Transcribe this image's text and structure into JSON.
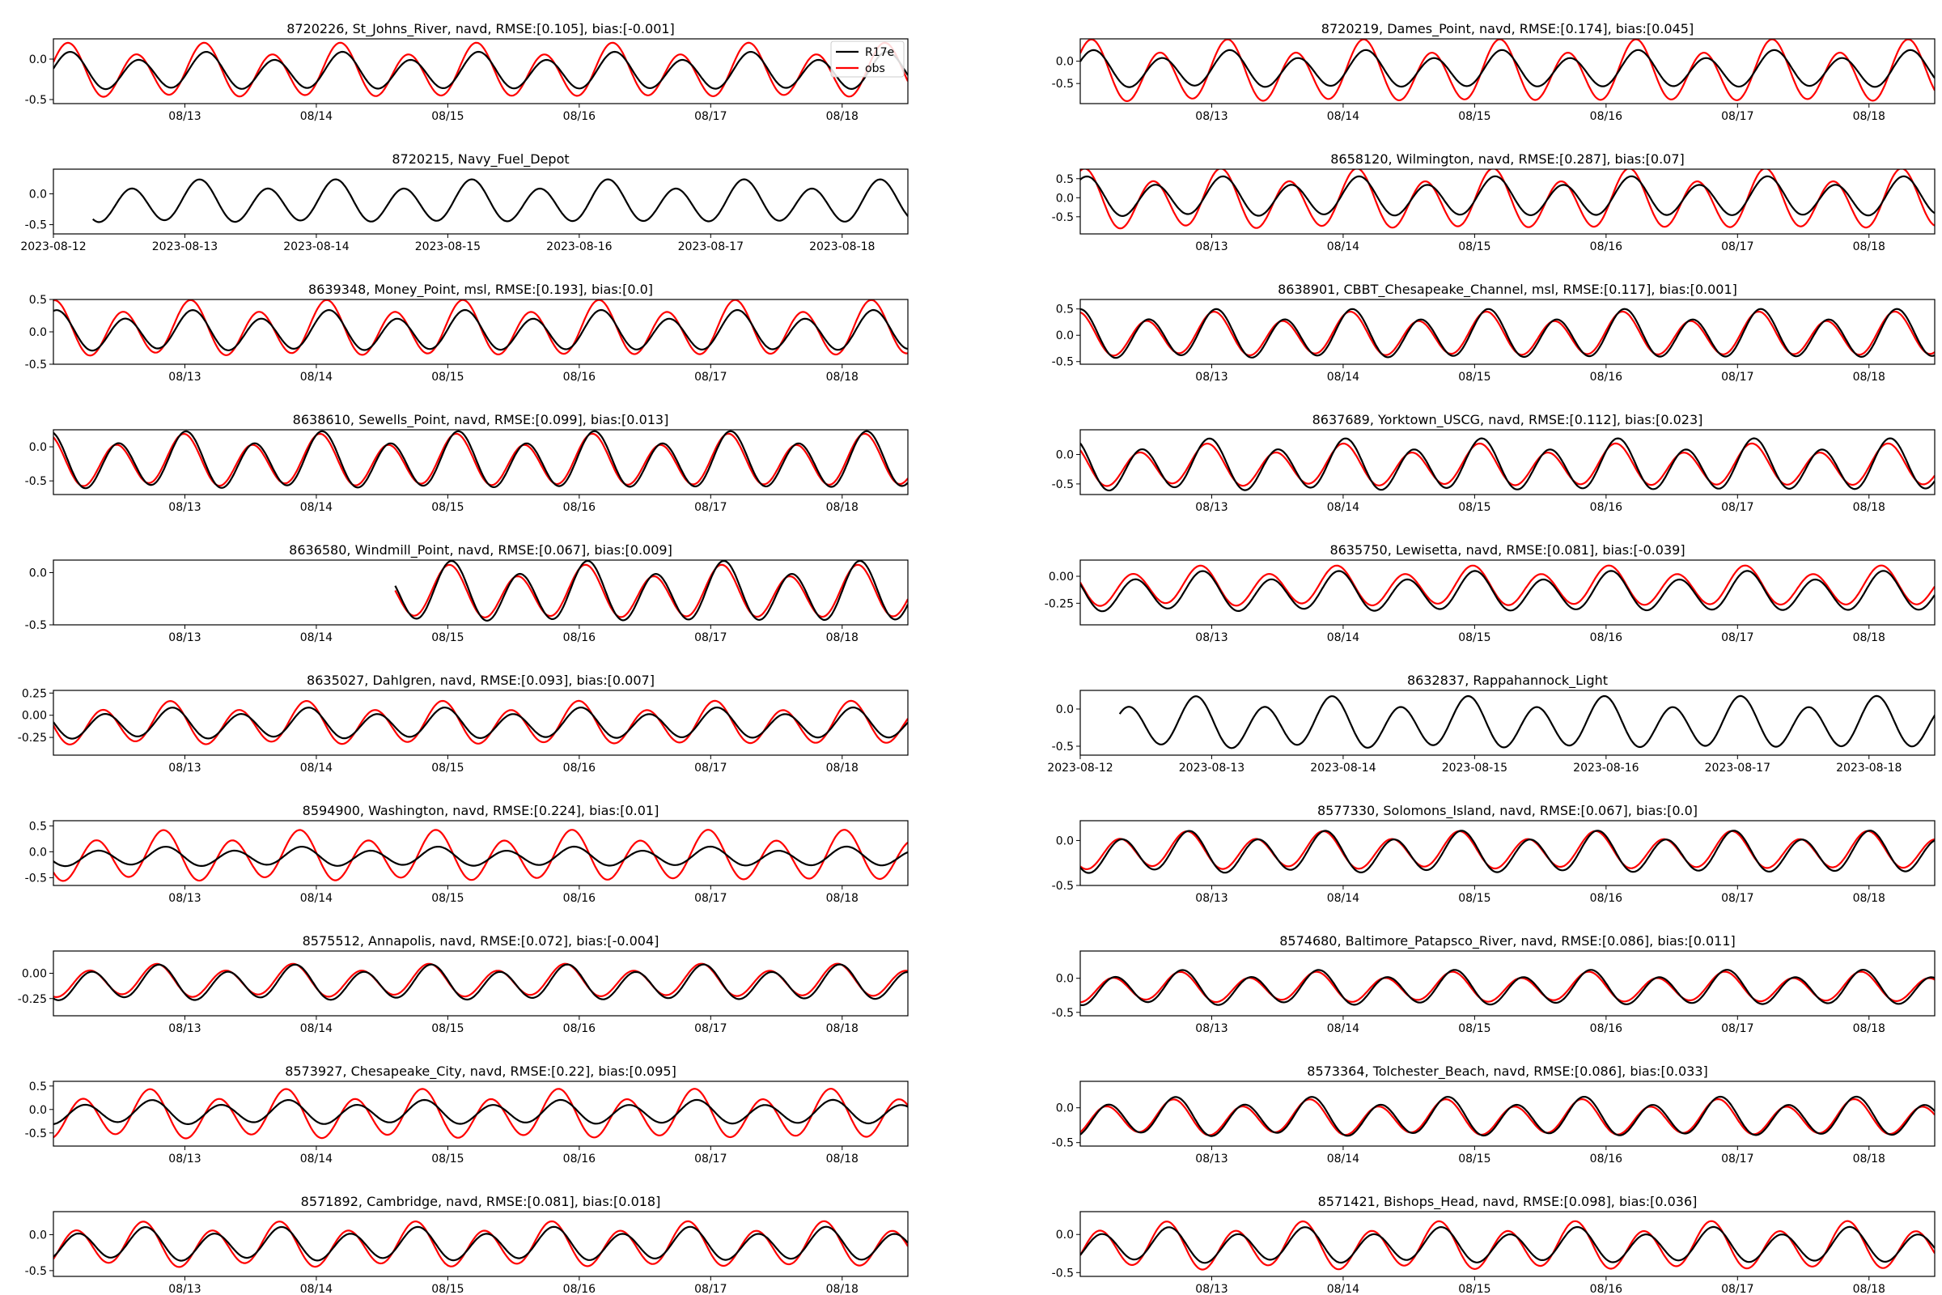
{
  "figure": {
    "colors": {
      "model": "#000000",
      "obs": "#ff0000"
    },
    "legend": {
      "placement": "top-right",
      "entries": [
        "R17e",
        "obs"
      ]
    }
  },
  "chart_data": [
    {
      "type": "line",
      "title": "8720226, St_Johns_River, navd, RMSE:[0.105], bias:[-0.001]",
      "ylim": [
        -0.55,
        0.25
      ],
      "yticks": [
        "0.0",
        "-0.5"
      ],
      "ytick_values": [
        0.0,
        -0.5
      ],
      "x_tick_labels": [
        "08/13",
        "08/14",
        "08/15",
        "08/16",
        "08/17",
        "08/18"
      ],
      "model": {
        "name": "R17e",
        "start_day": 0.0,
        "end_day": 6.5,
        "mean": -0.16,
        "amp": 0.2
      },
      "obs": {
        "name": "obs",
        "start_day": 0.0,
        "end_day": 6.5,
        "mean": -0.16,
        "amp": 0.29
      }
    },
    {
      "type": "line",
      "title": "8720219, Dames_Point, navd, RMSE:[0.174], bias:[0.045]",
      "ylim": [
        -0.95,
        0.5
      ],
      "yticks": [
        "0.0",
        "-0.5"
      ],
      "ytick_values": [
        0.0,
        -0.5
      ],
      "x_tick_labels": [
        "08/13",
        "08/14",
        "08/15",
        "08/16",
        "08/17",
        "08/18"
      ],
      "model": {
        "name": "R17e",
        "start_day": 0.0,
        "end_day": 6.5,
        "mean": -0.2,
        "amp": 0.36
      },
      "obs": {
        "name": "obs",
        "start_day": 0.0,
        "end_day": 6.5,
        "mean": -0.26,
        "amp": 0.6
      }
    },
    {
      "type": "line",
      "title": "8720215, Navy_Fuel_Depot",
      "ylim": [
        -0.65,
        0.4
      ],
      "yticks": [
        "0.0",
        "-0.5"
      ],
      "ytick_values": [
        0.0,
        -0.5
      ],
      "x_tick_labels": [
        "2023-08-12",
        "2023-08-13",
        "2023-08-14",
        "2023-08-15",
        "2023-08-16",
        "2023-08-17",
        "2023-08-18"
      ],
      "model": {
        "name": "R17e",
        "start_day": 0.3,
        "end_day": 6.6,
        "mean": -0.14,
        "amp": 0.3
      }
    },
    {
      "type": "line",
      "title": "8658120, Wilmington, navd, RMSE:[0.287], bias:[0.07]",
      "ylim": [
        -0.95,
        0.75
      ],
      "yticks": [
        "0.5",
        "0.0",
        "-0.5"
      ],
      "ytick_values": [
        0.5,
        0.0,
        -0.5
      ],
      "x_tick_labels": [
        "08/13",
        "08/14",
        "08/15",
        "08/16",
        "08/17",
        "08/18"
      ],
      "model": {
        "name": "R17e",
        "start_day": 0.0,
        "end_day": 6.5,
        "mean": 0.0,
        "amp": 0.45
      },
      "obs": {
        "name": "obs",
        "start_day": 0.0,
        "end_day": 6.5,
        "mean": -0.08,
        "amp": 0.68
      }
    },
    {
      "type": "line",
      "title": "8639348, Money_Point, msl, RMSE:[0.193], bias:[0.0]",
      "ylim": [
        -0.5,
        0.5
      ],
      "yticks": [
        "0.5",
        "0.0",
        "-0.5"
      ],
      "ytick_values": [
        0.5,
        0.0,
        -0.5
      ],
      "x_tick_labels": [
        "08/13",
        "08/14",
        "08/15",
        "08/16",
        "08/17",
        "08/18"
      ],
      "model": {
        "name": "R17e",
        "start_day": 0.0,
        "end_day": 6.5,
        "mean": 0.0,
        "amp": 0.27
      },
      "obs": {
        "name": "obs",
        "start_day": 0.0,
        "end_day": 6.5,
        "mean": 0.03,
        "amp": 0.37
      }
    },
    {
      "type": "line",
      "title": "8638901, CBBT_Chesapeake_Channel, msl, RMSE:[0.117], bias:[0.001]",
      "ylim": [
        -0.55,
        0.68
      ],
      "yticks": [
        "0.5",
        "0.0",
        "-0.5"
      ],
      "ytick_values": [
        0.5,
        0.0,
        -0.5
      ],
      "x_tick_labels": [
        "08/13",
        "08/14",
        "08/15",
        "08/16",
        "08/17",
        "08/18"
      ],
      "model": {
        "name": "R17e",
        "start_day": 0.0,
        "end_day": 6.5,
        "mean": 0.0,
        "amp": 0.4
      },
      "obs": {
        "name": "obs",
        "start_day": 0.0,
        "end_day": 6.5,
        "mean": 0.0,
        "amp": 0.36
      }
    },
    {
      "type": "line",
      "title": "8638610, Sewells_Point, navd, RMSE:[0.099], bias:[0.013]",
      "ylim": [
        -0.7,
        0.25
      ],
      "yticks": [
        "0.0",
        "-0.5"
      ],
      "ytick_values": [
        0.0,
        -0.5
      ],
      "x_tick_labels": [
        "08/13",
        "08/14",
        "08/15",
        "08/16",
        "08/17",
        "08/18"
      ],
      "model": {
        "name": "R17e",
        "start_day": 0.0,
        "end_day": 6.5,
        "mean": -0.22,
        "amp": 0.36
      },
      "obs": {
        "name": "obs",
        "start_day": 0.0,
        "end_day": 6.5,
        "mean": -0.22,
        "amp": 0.33
      }
    },
    {
      "type": "line",
      "title": "8637689, Yorktown_USCG, navd, RMSE:[0.112], bias:[0.023]",
      "ylim": [
        -0.68,
        0.42
      ],
      "yticks": [
        "0.0",
        "-0.5"
      ],
      "ytick_values": [
        0.0,
        -0.5
      ],
      "x_tick_labels": [
        "08/13",
        "08/14",
        "08/15",
        "08/16",
        "08/17",
        "08/18"
      ],
      "model": {
        "name": "R17e",
        "start_day": 0.0,
        "end_day": 6.5,
        "mean": -0.2,
        "amp": 0.38
      },
      "obs": {
        "name": "obs",
        "start_day": 0.0,
        "end_day": 6.5,
        "mean": -0.2,
        "amp": 0.31
      }
    },
    {
      "type": "line",
      "title": "8636580, Windmill_Point, navd, RMSE:[0.067], bias:[0.009]",
      "ylim": [
        -0.5,
        0.12
      ],
      "yticks": [
        "0.0",
        "-0.5"
      ],
      "ytick_values": [
        0.0,
        -0.5
      ],
      "x_tick_labels": [
        "08/13",
        "08/14",
        "08/15",
        "08/16",
        "08/17",
        "08/18"
      ],
      "model": {
        "name": "R17e",
        "start_day": 2.6,
        "end_day": 6.5,
        "mean": -0.2,
        "amp": 0.25
      },
      "obs": {
        "name": "obs",
        "start_day": 2.6,
        "end_day": 6.5,
        "mean": -0.2,
        "amp": 0.22
      }
    },
    {
      "type": "line",
      "title": "8635750, Lewisetta, navd, RMSE:[0.081], bias:[-0.039]",
      "ylim": [
        -0.45,
        0.15
      ],
      "yticks": [
        "0.00",
        "-0.25"
      ],
      "ytick_values": [
        0.0,
        -0.25
      ],
      "x_tick_labels": [
        "08/13",
        "08/14",
        "08/15",
        "08/16",
        "08/17",
        "08/18"
      ],
      "model": {
        "name": "R17e",
        "start_day": 0.0,
        "end_day": 6.5,
        "mean": -0.15,
        "amp": 0.16
      },
      "obs": {
        "name": "obs",
        "start_day": 0.0,
        "end_day": 6.5,
        "mean": -0.1,
        "amp": 0.16
      }
    },
    {
      "type": "line",
      "title": "8635027, Dahlgren, navd, RMSE:[0.093], bias:[0.007]",
      "ylim": [
        -0.45,
        0.28
      ],
      "yticks": [
        "0.25",
        "0.00",
        "-0.25"
      ],
      "ytick_values": [
        0.25,
        0.0,
        -0.25
      ],
      "x_tick_labels": [
        "08/13",
        "08/14",
        "08/15",
        "08/16",
        "08/17",
        "08/18"
      ],
      "model": {
        "name": "R17e",
        "start_day": 0.0,
        "end_day": 6.5,
        "mean": -0.1,
        "amp": 0.15
      },
      "obs": {
        "name": "obs",
        "start_day": 0.0,
        "end_day": 6.5,
        "mean": -0.1,
        "amp": 0.21
      }
    },
    {
      "type": "line",
      "title": "8632837, Rappahannock_Light",
      "ylim": [
        -0.62,
        0.25
      ],
      "yticks": [
        "0.0",
        "-0.5"
      ],
      "ytick_values": [
        0.0,
        -0.5
      ],
      "x_tick_labels": [
        "2023-08-12",
        "2023-08-13",
        "2023-08-14",
        "2023-08-15",
        "2023-08-16",
        "2023-08-17",
        "2023-08-18"
      ],
      "model": {
        "name": "R17e",
        "start_day": 0.3,
        "end_day": 6.6,
        "mean": -0.2,
        "amp": 0.3
      }
    },
    {
      "type": "line",
      "title": "8594900, Washington, navd, RMSE:[0.224], bias:[0.01]",
      "ylim": [
        -0.65,
        0.6
      ],
      "yticks": [
        "0.5",
        "0.0",
        "-0.5"
      ],
      "ytick_values": [
        0.5,
        0.0,
        -0.5
      ],
      "x_tick_labels": [
        "08/13",
        "08/14",
        "08/15",
        "08/16",
        "08/17",
        "08/18"
      ],
      "model": {
        "name": "R17e",
        "start_day": 0.0,
        "end_day": 6.5,
        "mean": -0.1,
        "amp": 0.16
      },
      "obs": {
        "name": "obs",
        "start_day": 0.0,
        "end_day": 6.5,
        "mean": -0.1,
        "amp": 0.42
      }
    },
    {
      "type": "line",
      "title": "8577330, Solomons_Island, navd, RMSE:[0.067], bias:[0.0]",
      "ylim": [
        -0.5,
        0.22
      ],
      "yticks": [
        "0.0",
        "-0.5"
      ],
      "ytick_values": [
        0.0,
        -0.5
      ],
      "x_tick_labels": [
        "08/13",
        "08/14",
        "08/15",
        "08/16",
        "08/17",
        "08/18"
      ],
      "model": {
        "name": "R17e",
        "start_day": 0.0,
        "end_day": 6.5,
        "mean": -0.14,
        "amp": 0.2
      },
      "obs": {
        "name": "obs",
        "start_day": 0.0,
        "end_day": 6.5,
        "mean": -0.12,
        "amp": 0.18
      }
    },
    {
      "type": "line",
      "title": "8575512, Annapolis, navd, RMSE:[0.072], bias:[-0.004]",
      "ylim": [
        -0.42,
        0.22
      ],
      "yticks": [
        "0.00",
        "-0.25"
      ],
      "ytick_values": [
        0.0,
        -0.25
      ],
      "x_tick_labels": [
        "08/13",
        "08/14",
        "08/15",
        "08/16",
        "08/17",
        "08/18"
      ],
      "model": {
        "name": "R17e",
        "start_day": 0.0,
        "end_day": 6.5,
        "mean": -0.1,
        "amp": 0.15
      },
      "obs": {
        "name": "obs",
        "start_day": 0.0,
        "end_day": 6.5,
        "mean": -0.08,
        "amp": 0.14
      }
    },
    {
      "type": "line",
      "title": "8574680, Baltimore_Patapsco_River, navd, RMSE:[0.086], bias:[0.011]",
      "ylim": [
        -0.55,
        0.4
      ],
      "yticks": [
        "0.0",
        "-0.5"
      ],
      "ytick_values": [
        0.0,
        -0.5
      ],
      "x_tick_labels": [
        "08/13",
        "08/14",
        "08/15",
        "08/16",
        "08/17",
        "08/18"
      ],
      "model": {
        "name": "R17e",
        "start_day": 0.0,
        "end_day": 6.5,
        "mean": -0.15,
        "amp": 0.22
      },
      "obs": {
        "name": "obs",
        "start_day": 0.0,
        "end_day": 6.5,
        "mean": -0.14,
        "amp": 0.19
      }
    },
    {
      "type": "line",
      "title": "8573927, Chesapeake_City, navd, RMSE:[0.22], bias:[0.095]",
      "ylim": [
        -0.78,
        0.6
      ],
      "yticks": [
        "0.5",
        "0.0",
        "-0.5"
      ],
      "ytick_values": [
        0.5,
        0.0,
        -0.5
      ],
      "x_tick_labels": [
        "08/13",
        "08/14",
        "08/15",
        "08/16",
        "08/17",
        "08/18"
      ],
      "model": {
        "name": "R17e",
        "start_day": 0.0,
        "end_day": 6.5,
        "mean": -0.07,
        "amp": 0.22
      },
      "obs": {
        "name": "obs",
        "start_day": 0.0,
        "end_day": 6.5,
        "mean": -0.12,
        "amp": 0.45
      }
    },
    {
      "type": "line",
      "title": "8573364, Tolchester_Beach, navd, RMSE:[0.086], bias:[0.033]",
      "ylim": [
        -0.55,
        0.38
      ],
      "yticks": [
        "0.0",
        "-0.5"
      ],
      "ytick_values": [
        0.0,
        -0.5
      ],
      "x_tick_labels": [
        "08/13",
        "08/14",
        "08/15",
        "08/16",
        "08/17",
        "08/18"
      ],
      "model": {
        "name": "R17e",
        "start_day": 0.0,
        "end_day": 6.5,
        "mean": -0.14,
        "amp": 0.24
      },
      "obs": {
        "name": "obs",
        "start_day": 0.0,
        "end_day": 6.5,
        "mean": -0.15,
        "amp": 0.22
      }
    },
    {
      "type": "line",
      "title": "8571892, Cambridge, navd, RMSE:[0.081], bias:[0.018]",
      "ylim": [
        -0.58,
        0.32
      ],
      "yticks": [
        "0.0",
        "-0.5"
      ],
      "ytick_values": [
        0.0,
        -0.5
      ],
      "x_tick_labels": [
        "08/13",
        "08/14",
        "08/15",
        "08/16",
        "08/17",
        "08/18"
      ],
      "model": {
        "name": "R17e",
        "start_day": 0.0,
        "end_day": 6.5,
        "mean": -0.14,
        "amp": 0.2
      },
      "obs": {
        "name": "obs",
        "start_day": 0.0,
        "end_day": 6.5,
        "mean": -0.15,
        "amp": 0.27
      }
    },
    {
      "type": "line",
      "title": "8571421, Bishops_Head, navd, RMSE:[0.098], bias:[0.036]",
      "ylim": [
        -0.55,
        0.3
      ],
      "yticks": [
        "0.0",
        "-0.5"
      ],
      "ytick_values": [
        0.0,
        -0.5
      ],
      "x_tick_labels": [
        "08/13",
        "08/14",
        "08/15",
        "08/16",
        "08/17",
        "08/18"
      ],
      "model": {
        "name": "R17e",
        "start_day": 0.0,
        "end_day": 6.5,
        "mean": -0.15,
        "amp": 0.2
      },
      "obs": {
        "name": "obs",
        "start_day": 0.0,
        "end_day": 6.5,
        "mean": -0.16,
        "amp": 0.27
      }
    }
  ]
}
